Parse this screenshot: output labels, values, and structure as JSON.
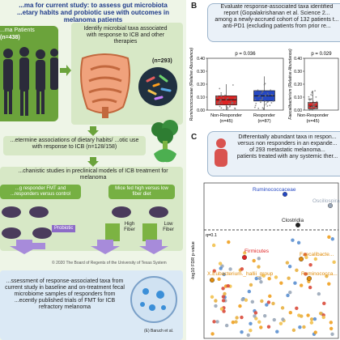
{
  "left": {
    "title_line1": "...ma for current study: to assess gut microbiota",
    "title_line2": "...etary habits and probiotic use with outcomes in",
    "title_line3": "melanoma patients",
    "patients_label": "...ma Patients",
    "patients_count": "(n=438)",
    "identify_text": "Identify microbial taxa associated with response to ICB and other therapies",
    "n293": "(n=293)",
    "determine_text": "...etermine associations of dietary habits/ ...otic use with response to ICB (n=128/158)",
    "mechanistic_text": "...chanistic studies in preclinical models of ICB treatment for melanoma",
    "fmt_text": "...g responder FMT and ...responders versus control",
    "probiotic_label": "Probiotic",
    "diet_text": "Mice fed high versus low fiber diet",
    "high_fiber": "High Fiber",
    "low_fiber": "Low Fiber",
    "copyright": "© 2020 The Board of Regents of the University of Texas System",
    "assessment_text": "...ssessment of response-associated taxa from current study in baseline and on-treatment fecal microbiome samples of responders from ...ecently published trials of FMT for ICB refractory melanoma",
    "citation": "(E) Baruch et al."
  },
  "panel_b": {
    "letter": "B",
    "box_text_1": "Evaluate response-associated taxa identified",
    "box_text_2": "report (Gopalakrishanan et al. Science 2...",
    "box_text_3": "among a newly-accrued cohort of 132 patients t...",
    "box_text_4": "anti-PD1 (excluding patients from prior re..."
  },
  "panel_c": {
    "letter": "C",
    "box_text_1": "Differentially abundant taxa in respon...",
    "box_text_2": "versus non responders in an expande...",
    "box_text_3": "of 293 metastatic melanoma...",
    "box_text_4": "patients treated with any systemic ther..."
  },
  "chart_data": [
    {
      "type": "box",
      "title": "",
      "ylabel": "Ruminococcaceae (Relative Abundance)",
      "pvalue": "p = 0.036",
      "ylim": [
        0,
        0.4
      ],
      "yticks": [
        "0.40",
        "0.30",
        "0.20",
        "0.10",
        "0.00"
      ],
      "categories": [
        "Non-Responder",
        "Responder"
      ],
      "counts": [
        "(n=45)",
        "(n=87)"
      ],
      "colors": [
        "#e02424",
        "#2548c4"
      ],
      "series": [
        {
          "name": "Non-Responder",
          "q1": 0.04,
          "median": 0.08,
          "q3": 0.11,
          "whisker_low": 0.0,
          "whisker_high": 0.2
        },
        {
          "name": "Responder",
          "q1": 0.07,
          "median": 0.11,
          "q3": 0.15,
          "whisker_low": 0.0,
          "whisker_high": 0.26
        }
      ]
    },
    {
      "type": "box",
      "title": "",
      "ylabel": "Faecalibacterium (Relative Abundance)",
      "pvalue": "p = 0.029",
      "ylim": [
        0,
        0.4
      ],
      "yticks": [
        "0.40",
        "0.30",
        "0.20",
        "0.10",
        "0.00"
      ],
      "categories": [
        "Non-Responder"
      ],
      "counts": [
        "(n=45)"
      ],
      "colors": [
        "#e02424"
      ],
      "series": [
        {
          "name": "Non-Responder",
          "q1": 0.01,
          "median": 0.03,
          "q3": 0.06,
          "whisker_low": 0.0,
          "whisker_high": 0.15
        }
      ]
    },
    {
      "type": "scatter",
      "ylabel": "-log10 FDR p-value",
      "threshold_label": "q=0.1",
      "labels": [
        {
          "text": "Ruminococcaceae",
          "color": "#2548c4"
        },
        {
          "text": "Oscillospira...",
          "color": "#9aa7b8"
        },
        {
          "text": "Clostridia",
          "color": "#222222"
        },
        {
          "text": "Firmicutes",
          "color": "#e02424"
        },
        {
          "text": "Faecalibacte...",
          "color": "#e08c0a"
        },
        {
          "text": "X.Eubacterium._hallii_group",
          "color": "#e08c0a"
        },
        {
          "text": "Ruminococca...",
          "color": "#e08c0a"
        }
      ]
    }
  ]
}
